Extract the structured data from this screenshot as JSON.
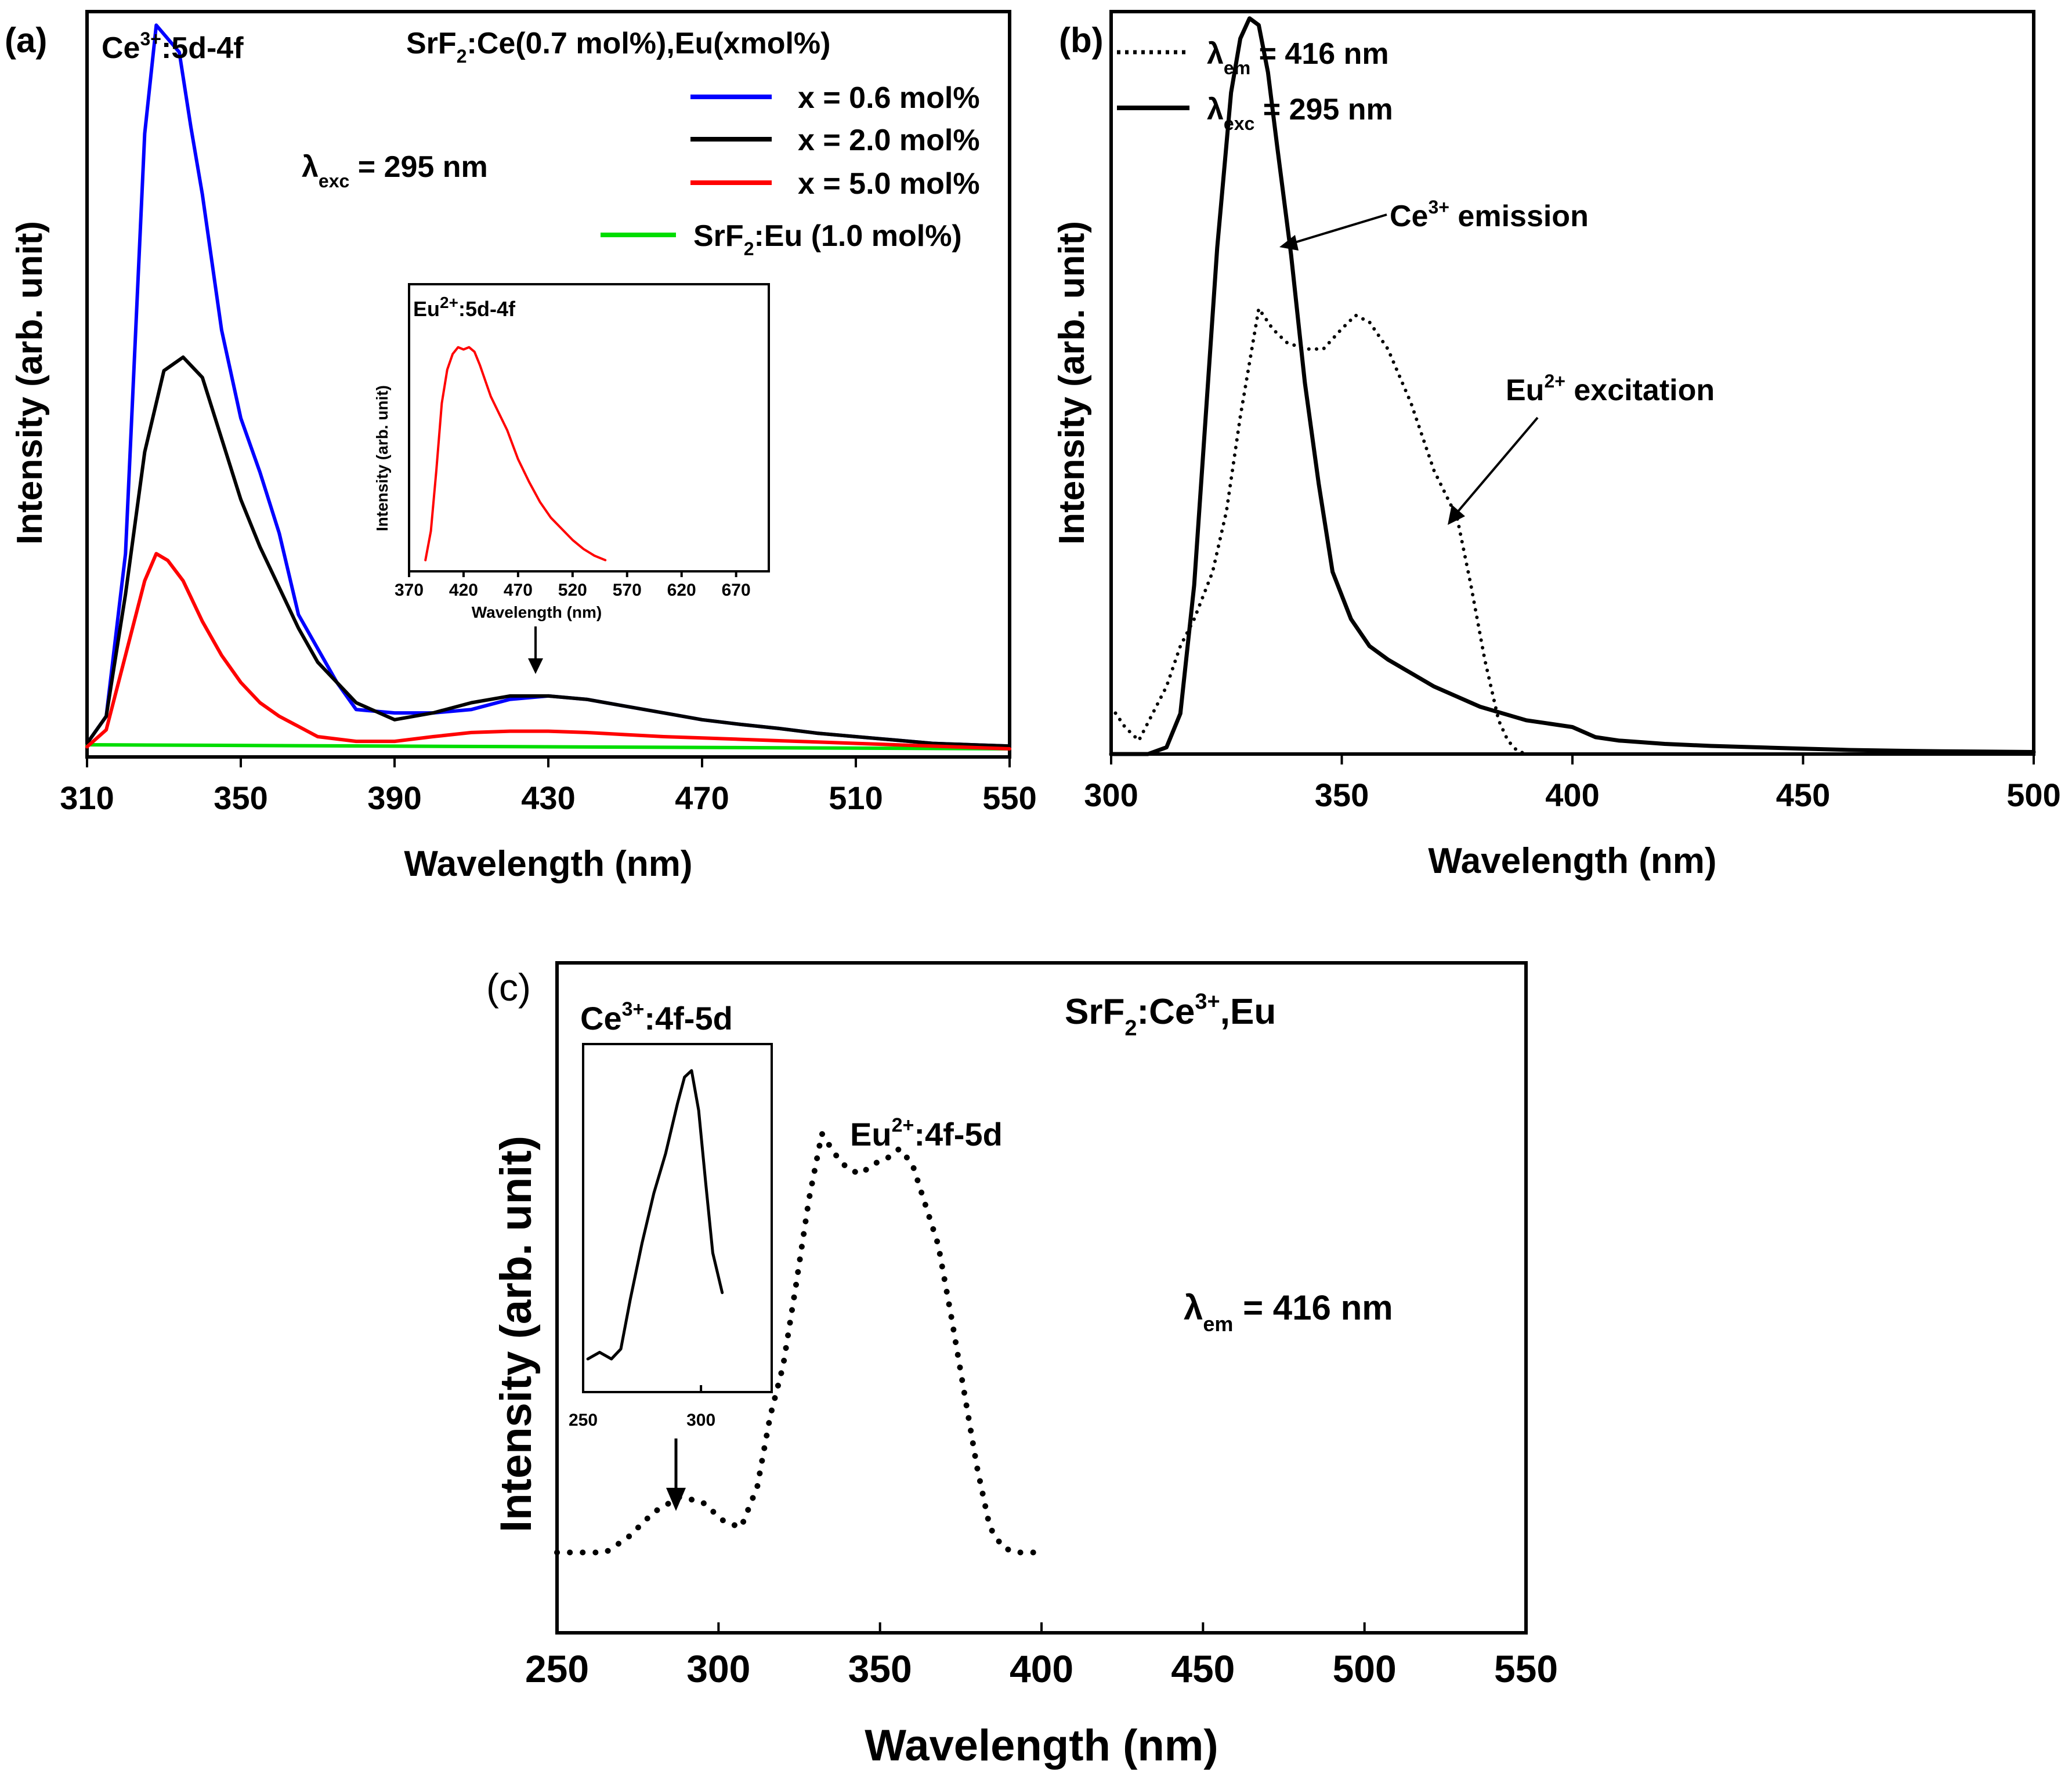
{
  "chart_data": [
    {
      "panel": "(a)",
      "type": "line",
      "title": "SrF2:Ce(0.7 mol%),Eu(xmol%)",
      "xlabel": "Wavelength (nm)",
      "ylabel": "Intensity (arb. unit)",
      "xlim": [
        310,
        550
      ],
      "ylim": [
        0,
        110
      ],
      "xticks": [
        "310",
        "350",
        "390",
        "430",
        "470",
        "510",
        "550"
      ],
      "legend_position": "top-right",
      "annotations": {
        "peak_label_main": "Ce",
        "peak_label_sup": "3+",
        "peak_label_rest": ":5d-4f",
        "exc_symbol": "λ",
        "exc_sub": "exc",
        "exc_value": " = 295 nm",
        "title_part1": "SrF",
        "title_sub": "2",
        "title_part2": ":Ce(0.7 mol%),Eu(xmol%)"
      },
      "series": [
        {
          "name": "x = 0.6 mol%",
          "color": "#0000ff",
          "x": [
            310,
            315,
            320,
            325,
            328,
            331,
            334,
            337,
            340,
            345,
            350,
            355,
            360,
            365,
            370,
            375,
            380,
            390,
            400,
            410,
            420,
            430,
            440,
            450,
            460,
            470,
            480,
            490,
            500,
            510,
            520,
            530,
            540,
            550
          ],
          "y": [
            2,
            6,
            30,
            92,
            108,
            106,
            104,
            93,
            83,
            63,
            50,
            42,
            33,
            21,
            16,
            11,
            7,
            6.5,
            6.5,
            7,
            8.5,
            9,
            8.5,
            7.5,
            6.5,
            5.5,
            4.8,
            4.2,
            3.5,
            3,
            2.5,
            2,
            1.8,
            1.6
          ]
        },
        {
          "name": "x = 2.0 mol%",
          "color": "#000000",
          "x": [
            310,
            315,
            320,
            325,
            330,
            335,
            340,
            345,
            350,
            355,
            360,
            365,
            370,
            380,
            390,
            400,
            410,
            420,
            430,
            440,
            450,
            460,
            470,
            480,
            490,
            500,
            510,
            520,
            530,
            540,
            550
          ],
          "y": [
            2,
            6,
            24,
            45,
            57,
            59,
            56,
            47,
            38,
            31,
            25,
            19,
            14,
            8,
            5.5,
            6.5,
            8,
            9,
            9,
            8.5,
            7.5,
            6.5,
            5.5,
            4.8,
            4.2,
            3.5,
            3,
            2.5,
            2,
            1.8,
            1.6
          ]
        },
        {
          "name": "x = 5.0 mol%",
          "color": "#ff0000",
          "x": [
            310,
            315,
            320,
            325,
            328,
            331,
            335,
            340,
            345,
            350,
            355,
            360,
            365,
            370,
            380,
            390,
            400,
            410,
            420,
            430,
            440,
            450,
            460,
            470,
            480,
            490,
            500,
            510,
            520,
            530,
            540,
            550
          ],
          "y": [
            1.5,
            4,
            15,
            26,
            30,
            29,
            26,
            20,
            15,
            11,
            8,
            6,
            4.5,
            3,
            2.3,
            2.3,
            3,
            3.6,
            3.8,
            3.8,
            3.6,
            3.3,
            3,
            2.8,
            2.6,
            2.4,
            2.2,
            2,
            1.8,
            1.6,
            1.4,
            1.2
          ]
        },
        {
          "name": "SrF2:Eu (1.0 mol%)",
          "color": "#00dd00",
          "x": [
            310,
            550
          ],
          "y": [
            1.8,
            1.2
          ]
        }
      ],
      "legend_labels": [
        {
          "text": "x = 0.6 mol%",
          "color": "#0000ff"
        },
        {
          "text": "x = 2.0 mol%",
          "color": "#000000"
        },
        {
          "text": "x = 5.0 mol%",
          "color": "#ff0000"
        },
        {
          "text_main": "SrF",
          "text_sub": "2",
          "text_rest": ":Eu (1.0 mol%)",
          "color": "#00dd00"
        }
      ],
      "inset": {
        "title_main": "Eu",
        "title_sup": "2+",
        "title_rest": ":5d-4f",
        "xlabel": "Wavelength (nm)",
        "ylabel": "Intensity (arb. unit)",
        "xlim": [
          370,
          700
        ],
        "xticks": [
          "370",
          "420",
          "470",
          "520",
          "570",
          "620",
          "670"
        ],
        "series": {
          "color": "#ff0000",
          "x": [
            385,
            390,
            395,
            400,
            405,
            410,
            415,
            420,
            425,
            430,
            435,
            440,
            445,
            450,
            460,
            470,
            480,
            490,
            500,
            510,
            520,
            530,
            540,
            550
          ],
          "y": [
            5,
            18,
            45,
            75,
            90,
            97,
            100,
            99,
            100,
            98,
            92,
            85,
            78,
            73,
            63,
            50,
            40,
            31,
            24,
            19,
            14,
            10,
            7,
            5
          ]
        }
      }
    },
    {
      "panel": "(b)",
      "type": "line",
      "xlabel": "Wavelength (nm)",
      "ylabel": "Intensity (arb. unit)",
      "xlim": [
        300,
        500
      ],
      "ylim": [
        0,
        110
      ],
      "xticks": [
        "300",
        "350",
        "400",
        "450",
        "500"
      ],
      "legend_position": "top-left",
      "legend_labels": [
        {
          "sym": "λ",
          "sub": "em",
          "rest": " = 416 nm",
          "style": "dotted"
        },
        {
          "sym": "λ",
          "sub": "exc",
          "rest": " = 295 nm",
          "style": "solid"
        }
      ],
      "annotations": {
        "ce_main": "Ce",
        "ce_sup": "3+",
        "ce_rest": " emission",
        "eu_main": "Eu",
        "eu_sup": "2+",
        "eu_rest": " excitation"
      },
      "series": [
        {
          "name": "λem = 416 nm (Eu2+ excitation)",
          "style": "dotted",
          "color": "#000000",
          "x": [
            300,
            303,
            306,
            309,
            312,
            315,
            318,
            322,
            325,
            328,
            330,
            332,
            335,
            338,
            342,
            346,
            350,
            353,
            356,
            360,
            365,
            370,
            375,
            378,
            381,
            384,
            386,
            388,
            390
          ],
          "y": [
            7,
            4,
            2,
            6,
            10,
            16,
            20,
            27,
            36,
            50,
            58,
            66,
            63,
            61,
            60,
            60,
            63,
            65,
            64,
            60,
            52,
            42,
            35,
            25,
            14,
            5,
            2,
            0.5,
            0
          ]
        },
        {
          "name": "λexc = 295 nm (Ce3+ emission)",
          "style": "solid",
          "color": "#000000",
          "x": [
            300,
            308,
            312,
            315,
            318,
            320,
            323,
            326,
            328,
            330,
            332,
            334,
            336,
            339,
            342,
            345,
            348,
            352,
            356,
            360,
            365,
            370,
            375,
            380,
            385,
            390,
            395,
            400,
            405,
            410,
            420,
            430,
            440,
            450,
            460,
            470,
            480,
            500
          ],
          "y": [
            0,
            0,
            1,
            6,
            25,
            45,
            75,
            98,
            106,
            109,
            108,
            101,
            90,
            74,
            55,
            40,
            27,
            20,
            16,
            14,
            12,
            10,
            8.5,
            7,
            6,
            5,
            4.5,
            4,
            2.5,
            2,
            1.5,
            1.2,
            1,
            0.8,
            0.6,
            0.5,
            0.4,
            0.3
          ]
        }
      ]
    },
    {
      "panel": "(c)",
      "type": "line",
      "xlabel": "Wavelength (nm)",
      "ylabel": "Intensity (arb. unit)",
      "xlim": [
        250,
        550
      ],
      "ylim": [
        0,
        100
      ],
      "xticks": [
        "250",
        "300",
        "350",
        "400",
        "450",
        "500",
        "550"
      ],
      "annotations": {
        "title_main": "SrF",
        "title_sub": "2",
        "title_mid": ":Ce",
        "title_sup": "3+",
        "title_rest": ",Eu",
        "eu_main": "Eu",
        "eu_sup": "2+",
        "eu_rest": ":4f-5d",
        "em_sym": "λ",
        "em_sub": "em",
        "em_rest": " = 416 nm",
        "em_color": "#ff0000"
      },
      "series": [
        {
          "name": "λem = 416 nm",
          "style": "dotted",
          "color": "#000000",
          "x": [
            250,
            258,
            265,
            272,
            280,
            288,
            295,
            302,
            307,
            312,
            316,
            320,
            324,
            328,
            332,
            336,
            340,
            344,
            348,
            352,
            356,
            360,
            364,
            368,
            372,
            376,
            380,
            384,
            388,
            392,
            398
          ],
          "y": [
            5,
            5,
            5,
            8,
            13,
            16,
            15,
            11,
            10,
            18,
            32,
            42,
            58,
            75,
            88,
            84,
            81,
            80,
            82,
            83,
            85,
            82,
            74,
            66,
            52,
            37,
            22,
            10,
            6,
            5,
            5
          ]
        }
      ],
      "inset": {
        "title_main": "Ce",
        "title_sup": "3+",
        "title_rest": ":4f-5d",
        "xlim": [
          250,
          330
        ],
        "xticks": [
          "250",
          "300"
        ],
        "series": {
          "color": "#000000",
          "x": [
            252,
            257,
            262,
            266,
            270,
            275,
            280,
            285,
            290,
            293,
            296,
            299,
            302,
            305,
            309
          ],
          "y": [
            10,
            12,
            10,
            13,
            28,
            45,
            60,
            72,
            87,
            95,
            97,
            85,
            63,
            42,
            30
          ]
        }
      }
    }
  ]
}
